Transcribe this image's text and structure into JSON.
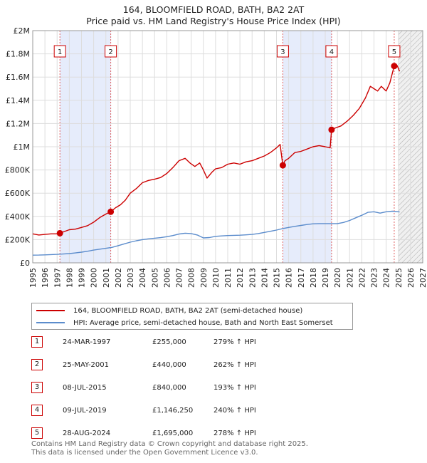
{
  "title_line1": "164, BLOOMFIELD ROAD, BATH, BA2 2AT",
  "title_line2": "Price paid vs. HM Land Registry's House Price Index (HPI)",
  "legend": {
    "property_label": "164, BLOOMFIELD ROAD, BATH, BA2 2AT (semi-detached house)",
    "hpi_label": "HPI: Average price, semi-detached house, Bath and North East Somerset",
    "property_color": "#cc0000",
    "hpi_color": "#5b8ccc"
  },
  "sales": [
    {
      "num": "1",
      "date": "24-MAR-1997",
      "price": "£255,000",
      "hpi": "279% ↑ HPI"
    },
    {
      "num": "2",
      "date": "25-MAY-2001",
      "price": "£440,000",
      "hpi": "262% ↑ HPI"
    },
    {
      "num": "3",
      "date": "08-JUL-2015",
      "price": "£840,000",
      "hpi": "193% ↑ HPI"
    },
    {
      "num": "4",
      "date": "09-JUL-2019",
      "price": "£1,146,250",
      "hpi": "240% ↑ HPI"
    },
    {
      "num": "5",
      "date": "28-AUG-2024",
      "price": "£1,695,000",
      "hpi": "278% ↑ HPI"
    }
  ],
  "footer_line1": "Contains HM Land Registry data © Crown copyright and database right 2025.",
  "footer_line2": "This data is licensed under the Open Government Licence v3.0.",
  "chart_data": {
    "type": "line",
    "title": "164, BLOOMFIELD ROAD, BATH, BA2 2AT",
    "subtitle": "Price paid vs. HM Land Registry's House Price Index (HPI)",
    "xlim": [
      1995,
      2027
    ],
    "ylim": [
      0,
      2000000
    ],
    "x_ticks": [
      1995,
      1996,
      1997,
      1998,
      1999,
      2000,
      2001,
      2002,
      2003,
      2004,
      2005,
      2006,
      2007,
      2008,
      2009,
      2010,
      2011,
      2012,
      2013,
      2014,
      2015,
      2016,
      2017,
      2018,
      2019,
      2020,
      2021,
      2022,
      2023,
      2024,
      2025,
      2026,
      2027
    ],
    "y_ticks": [
      {
        "value": 0,
        "label": "£0"
      },
      {
        "value": 200000,
        "label": "£200K"
      },
      {
        "value": 400000,
        "label": "£400K"
      },
      {
        "value": 600000,
        "label": "£600K"
      },
      {
        "value": 800000,
        "label": "£800K"
      },
      {
        "value": 1000000,
        "label": "£1M"
      },
      {
        "value": 1200000,
        "label": "£1.2M"
      },
      {
        "value": 1400000,
        "label": "£1.4M"
      },
      {
        "value": 1600000,
        "label": "£1.6M"
      },
      {
        "value": 1800000,
        "label": "£1.8M"
      },
      {
        "value": 2000000,
        "label": "£2M"
      }
    ],
    "grid": true,
    "shaded_periods": [
      [
        1997.23,
        2001.4
      ],
      [
        2015.52,
        2019.52
      ]
    ],
    "future_hatch_from": 2025.0,
    "sale_markers": [
      {
        "label": "1",
        "x": 1997.23,
        "y": 255000
      },
      {
        "label": "2",
        "x": 2001.4,
        "y": 440000
      },
      {
        "label": "3",
        "x": 2015.52,
        "y": 840000
      },
      {
        "label": "4",
        "x": 2019.52,
        "y": 1146250
      },
      {
        "label": "5",
        "x": 2024.66,
        "y": 1695000
      }
    ],
    "series": [
      {
        "name": "164, BLOOMFIELD ROAD, BATH, BA2 2AT (semi-detached house)",
        "color": "#cc0000",
        "x": [
          1995.0,
          1995.5,
          1996.0,
          1996.5,
          1997.0,
          1997.23,
          1997.6,
          1998.0,
          1998.5,
          1999.0,
          1999.5,
          2000.0,
          2000.5,
          2001.0,
          2001.4,
          2001.8,
          2002.2,
          2002.6,
          2003.0,
          2003.5,
          2004.0,
          2004.5,
          2005.0,
          2005.5,
          2006.0,
          2006.5,
          2007.0,
          2007.5,
          2007.9,
          2008.3,
          2008.7,
          2009.0,
          2009.3,
          2009.7,
          2010.0,
          2010.5,
          2011.0,
          2011.5,
          2012.0,
          2012.5,
          2013.0,
          2013.5,
          2014.0,
          2014.5,
          2015.0,
          2015.3,
          2015.52,
          2015.7,
          2016.0,
          2016.5,
          2017.0,
          2017.5,
          2018.0,
          2018.5,
          2019.0,
          2019.4,
          2019.52,
          2019.8,
          2020.3,
          2020.8,
          2021.3,
          2021.8,
          2022.3,
          2022.7,
          2023.0,
          2023.3,
          2023.6,
          2024.0,
          2024.3,
          2024.66,
          2024.9,
          2025.1
        ],
        "y": [
          250000,
          240000,
          245000,
          250000,
          250000,
          255000,
          270000,
          285000,
          290000,
          305000,
          320000,
          350000,
          390000,
          420000,
          440000,
          475000,
          500000,
          540000,
          600000,
          640000,
          690000,
          710000,
          720000,
          735000,
          770000,
          820000,
          880000,
          900000,
          860000,
          830000,
          860000,
          800000,
          730000,
          780000,
          810000,
          820000,
          850000,
          860000,
          850000,
          870000,
          880000,
          900000,
          920000,
          950000,
          990000,
          1020000,
          840000,
          880000,
          900000,
          950000,
          960000,
          980000,
          1000000,
          1010000,
          1000000,
          990000,
          1146250,
          1160000,
          1180000,
          1220000,
          1270000,
          1330000,
          1420000,
          1520000,
          1500000,
          1480000,
          1520000,
          1480000,
          1550000,
          1695000,
          1700000,
          1650000
        ]
      },
      {
        "name": "HPI: Average price, semi-detached house, Bath and North East Somerset",
        "color": "#5b8ccc",
        "x": [
          1995.0,
          1995.5,
          1996.0,
          1996.5,
          1997.0,
          1997.5,
          1998.0,
          1998.5,
          1999.0,
          1999.5,
          2000.0,
          2000.5,
          2001.0,
          2001.5,
          2002.0,
          2002.5,
          2003.0,
          2003.5,
          2004.0,
          2004.5,
          2005.0,
          2005.5,
          2006.0,
          2006.5,
          2007.0,
          2007.5,
          2008.0,
          2008.5,
          2009.0,
          2009.5,
          2010.0,
          2010.5,
          2011.0,
          2011.5,
          2012.0,
          2012.5,
          2013.0,
          2013.5,
          2014.0,
          2014.5,
          2015.0,
          2015.5,
          2016.0,
          2016.5,
          2017.0,
          2017.5,
          2018.0,
          2018.5,
          2019.0,
          2019.5,
          2020.0,
          2020.5,
          2021.0,
          2021.5,
          2022.0,
          2022.5,
          2023.0,
          2023.5,
          2024.0,
          2024.5,
          2025.0,
          2025.1
        ],
        "y": [
          66000,
          67000,
          69000,
          71000,
          73000,
          76000,
          80000,
          85000,
          92000,
          100000,
          110000,
          118000,
          125000,
          133000,
          148000,
          163000,
          178000,
          190000,
          200000,
          207000,
          212000,
          217000,
          225000,
          235000,
          248000,
          255000,
          252000,
          240000,
          215000,
          218000,
          228000,
          232000,
          235000,
          237000,
          238000,
          241000,
          245000,
          252000,
          262000,
          272000,
          282000,
          295000,
          305000,
          314000,
          322000,
          330000,
          336000,
          338000,
          338000,
          338000,
          338000,
          348000,
          365000,
          388000,
          410000,
          435000,
          440000,
          428000,
          440000,
          445000,
          440000,
          438000
        ]
      }
    ]
  }
}
